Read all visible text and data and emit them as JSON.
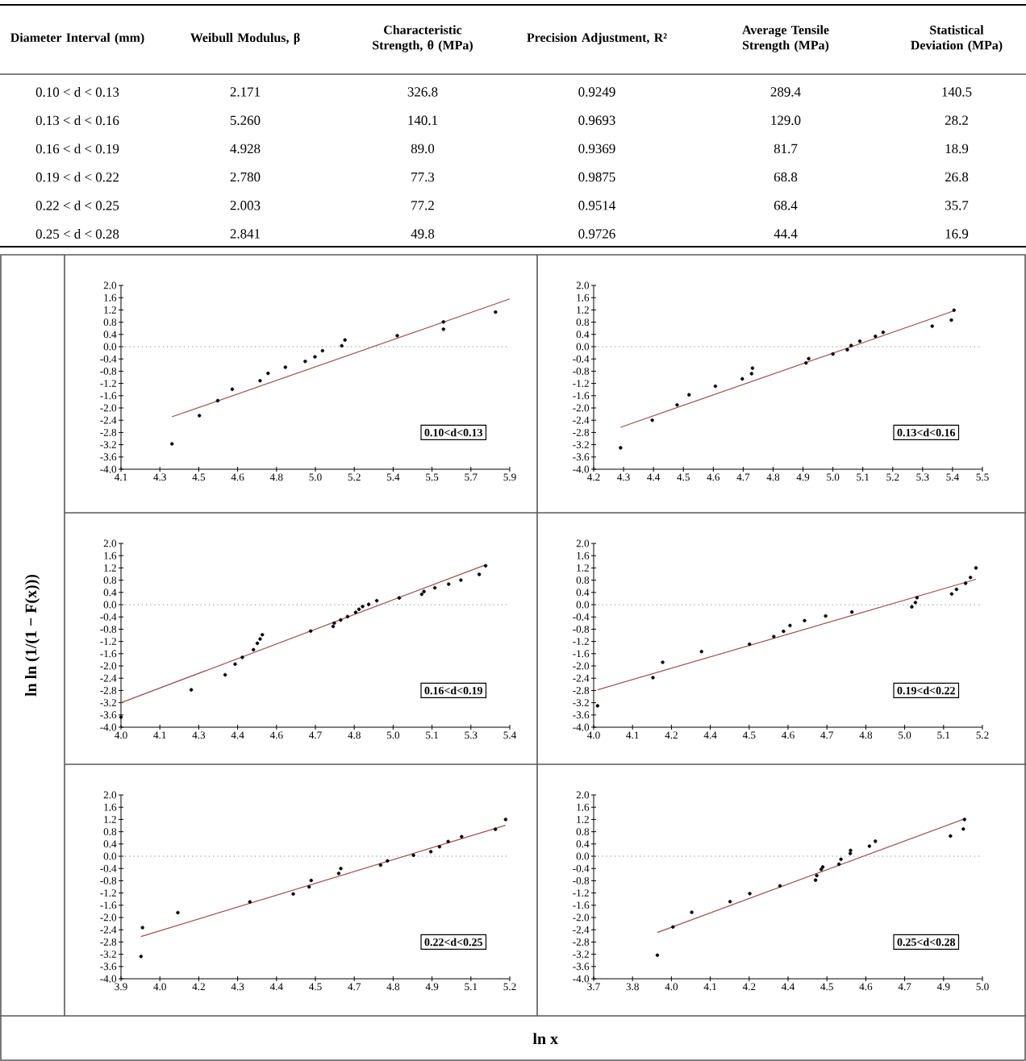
{
  "chart_data": [
    {
      "type": "other",
      "ylabel": "Diameter Interval (mm)",
      "categories": [
        "Weibull Modulus, β",
        "Characteristic Strength, θ (MPa)",
        "Precision Adjustment, R²",
        "Average Tensile Strength (MPa)",
        "Statistical Deviation (MPa)"
      ],
      "y_categories": [
        "0.10 < d < 0.13",
        "0.13 < d < 0.16",
        "0.16 < d < 0.19",
        "0.19 < d < 0.22",
        "0.22 < d < 0.25",
        "0.25 < d < 0.28"
      ],
      "cell_labels": [
        [
          "2.171",
          "326.8",
          "0.9249",
          "289.4",
          "140.5"
        ],
        [
          "5.260",
          "140.1",
          "0.9693",
          "129.0",
          "28.2"
        ],
        [
          "4.928",
          "89.0",
          "0.9369",
          "81.7",
          "18.9"
        ],
        [
          "2.780",
          "77.3",
          "0.9875",
          "68.8",
          "26.8"
        ],
        [
          "2.003",
          "77.2",
          "0.9514",
          "68.4",
          "35.7"
        ],
        [
          "2.841",
          "49.8",
          "0.9726",
          "44.4",
          "16.9"
        ]
      ]
    },
    {
      "type": "scatter",
      "marker": "circle",
      "grid": false,
      "xlim": [
        4.1,
        5.9
      ],
      "ylim": [
        -4.0,
        2.0
      ],
      "xticks": [
        4.1,
        {
          "value": 4.28,
          "label": "4.3"
        },
        {
          "value": 4.46,
          "label": "4.5"
        },
        {
          "value": 4.64,
          "label": "4.6"
        },
        {
          "value": 4.82,
          "label": "4.8"
        },
        {
          "value": 5.0,
          "label": "5.0"
        },
        {
          "value": 5.18,
          "label": "5.2"
        },
        {
          "value": 5.36,
          "label": "5.4"
        },
        {
          "value": 5.54,
          "label": "5.5"
        },
        {
          "value": 5.72,
          "label": "5.7"
        },
        5.9
      ],
      "yticks": [
        {
          "value": 2,
          "label": "2.0"
        },
        1.6,
        1.2,
        0.8,
        0.4,
        {
          "value": 0,
          "label": "0.0"
        },
        -0.4,
        -0.8,
        -1.2,
        -1.6,
        {
          "value": -2,
          "label": "-2.0"
        },
        -2.4,
        -2.8,
        -3.2,
        -3.6,
        {
          "value": -4,
          "label": "-4.0"
        }
      ],
      "series": [
        {
          "type": "scatter",
          "color": "#000000",
          "x": [
            4.336,
            4.463,
            4.548,
            4.615,
            4.744,
            4.781,
            4.861,
            4.953,
            4.998,
            5.033,
            5.122,
            5.137,
            5.379,
            5.593,
            5.593,
            5.834
          ],
          "values": [
            -3.17,
            -2.25,
            -1.76,
            -1.39,
            -1.11,
            -0.87,
            -0.67,
            -0.48,
            -0.33,
            -0.13,
            0.03,
            0.22,
            0.36,
            0.81,
            0.57,
            1.13
          ]
        },
        {
          "type": "line",
          "marker": "none",
          "color": "#9e4f4f",
          "x": [
            4.336,
            5.9
          ],
          "values": [
            -2.29,
            1.56
          ]
        }
      ],
      "ref_lines": [
        {
          "axis": "y",
          "value": 0,
          "line_style": "dotted",
          "color": "#808080"
        }
      ],
      "annotations": [
        "0.10<d<0.13"
      ]
    },
    {
      "type": "scatter",
      "marker": "circle",
      "grid": false,
      "xlim": [
        4.2,
        5.5
      ],
      "ylim": [
        -4.0,
        2.0
      ],
      "xticks": [
        4.2,
        4.3,
        4.4,
        4.5,
        4.6,
        4.7,
        4.8,
        4.9,
        {
          "value": 5.0,
          "label": "5.0"
        },
        5.1,
        5.2,
        5.3,
        5.4,
        5.5
      ],
      "yticks": [
        {
          "value": 2,
          "label": "2.0"
        },
        1.6,
        1.2,
        0.8,
        0.4,
        {
          "value": 0,
          "label": "0.0"
        },
        -0.4,
        -0.8,
        -1.2,
        -1.6,
        {
          "value": -2,
          "label": "-2.0"
        },
        -2.4,
        -2.8,
        -3.2,
        -3.6,
        {
          "value": -4,
          "label": "-4.0"
        }
      ],
      "series": [
        {
          "type": "scatter",
          "color": "#000000",
          "x": [
            4.29,
            4.396,
            4.479,
            4.519,
            4.607,
            4.697,
            4.728,
            4.731,
            4.91,
            4.919,
            5.0,
            5.048,
            5.061,
            5.09,
            5.142,
            5.168,
            5.332,
            5.396,
            5.405
          ],
          "values": [
            -3.3,
            -2.4,
            -1.9,
            -1.57,
            -1.29,
            -1.05,
            -0.88,
            -0.7,
            -0.53,
            -0.39,
            -0.24,
            -0.1,
            0.04,
            0.18,
            0.34,
            0.47,
            0.67,
            0.87,
            1.19
          ]
        },
        {
          "type": "line",
          "marker": "none",
          "color": "#9e4f4f",
          "x": [
            4.29,
            5.405
          ],
          "values": [
            -2.63,
            1.17
          ]
        }
      ],
      "ref_lines": [
        {
          "axis": "y",
          "value": 0,
          "line_style": "dotted",
          "color": "#808080"
        }
      ],
      "annotations": [
        "0.13<d<0.16"
      ]
    },
    {
      "type": "scatter",
      "marker": "circle",
      "grid": false,
      "ylabel": "ln ln (1/(1 − F(x)))",
      "xlim": [
        4.0,
        5.4
      ],
      "ylim": [
        -4.0,
        2.0
      ],
      "xticks": [
        {
          "value": 4.0,
          "label": "4.0"
        },
        {
          "value": 4.14,
          "label": "4.1"
        },
        {
          "value": 4.28,
          "label": "4.3"
        },
        {
          "value": 4.42,
          "label": "4.4"
        },
        {
          "value": 4.56,
          "label": "4.6"
        },
        4.7,
        {
          "value": 4.84,
          "label": "4.8"
        },
        {
          "value": 4.98,
          "label": "5.0"
        },
        {
          "value": 5.12,
          "label": "5.1"
        },
        {
          "value": 5.26,
          "label": "5.3"
        },
        5.4
      ],
      "yticks": [
        {
          "value": 2,
          "label": "2.0"
        },
        1.6,
        1.2,
        0.8,
        0.4,
        {
          "value": 0,
          "label": "0.0"
        },
        -0.4,
        -0.8,
        -1.2,
        -1.6,
        {
          "value": -2,
          "label": "-2.0"
        },
        -2.4,
        -2.8,
        -3.2,
        -3.6,
        {
          "value": -4,
          "label": "-4.0"
        }
      ],
      "series": [
        {
          "type": "scatter",
          "color": "#000000",
          "x": [
            4.0,
            4.253,
            4.375,
            4.411,
            4.437,
            4.477,
            4.491,
            4.501,
            4.509,
            4.683,
            4.764,
            4.768,
            4.791,
            4.816,
            4.845,
            4.857,
            4.87,
            4.892,
            4.921,
            5.002,
            5.083,
            5.091,
            5.13,
            5.18,
            5.224,
            5.29,
            5.313
          ],
          "values": [
            -3.67,
            -2.78,
            -2.29,
            -1.94,
            -1.72,
            -1.47,
            -1.26,
            -1.12,
            -0.98,
            -0.86,
            -0.71,
            -0.6,
            -0.5,
            -0.39,
            -0.25,
            -0.15,
            -0.06,
            0.01,
            0.13,
            0.22,
            0.34,
            0.43,
            0.55,
            0.67,
            0.8,
            0.99,
            1.27
          ]
        },
        {
          "type": "line",
          "marker": "none",
          "color": "#9e4f4f",
          "x": [
            4.0,
            5.313
          ],
          "values": [
            -3.2,
            1.3
          ]
        }
      ],
      "ref_lines": [
        {
          "axis": "y",
          "value": 0,
          "line_style": "dotted",
          "color": "#808080"
        }
      ],
      "annotations": [
        "0.16<d<0.19"
      ]
    },
    {
      "type": "scatter",
      "marker": "circle",
      "grid": false,
      "xlim": [
        4.0,
        5.2
      ],
      "ylim": [
        -4.0,
        2.0
      ],
      "xticks": [
        {
          "value": 4.0,
          "label": "4.0"
        },
        {
          "value": 4.12,
          "label": "4.1"
        },
        {
          "value": 4.24,
          "label": "4.2"
        },
        {
          "value": 4.36,
          "label": "4.4"
        },
        {
          "value": 4.48,
          "label": "4.5"
        },
        4.6,
        {
          "value": 4.72,
          "label": "4.7"
        },
        {
          "value": 4.84,
          "label": "4.8"
        },
        {
          "value": 4.96,
          "label": "5.0"
        },
        {
          "value": 5.08,
          "label": "5.1"
        },
        5.2
      ],
      "yticks": [
        {
          "value": 2,
          "label": "2.0"
        },
        1.6,
        1.2,
        0.8,
        0.4,
        {
          "value": 0,
          "label": "0.0"
        },
        -0.4,
        -0.8,
        -1.2,
        -1.6,
        {
          "value": -2,
          "label": "-2.0"
        },
        -2.4,
        -2.8,
        -3.2,
        -3.6,
        {
          "value": -4,
          "label": "-4.0"
        }
      ],
      "series": [
        {
          "type": "scatter",
          "color": "#000000",
          "x": [
            4.012,
            4.183,
            4.213,
            4.333,
            4.481,
            4.556,
            4.586,
            4.606,
            4.651,
            4.716,
            4.797,
            4.982,
            4.993,
            4.998,
            5.105,
            5.12,
            5.148,
            5.163,
            5.18
          ],
          "values": [
            -3.3,
            -2.38,
            -1.88,
            -1.53,
            -1.29,
            -1.04,
            -0.87,
            -0.68,
            -0.52,
            -0.37,
            -0.24,
            -0.07,
            0.07,
            0.23,
            0.35,
            0.5,
            0.7,
            0.89,
            1.2
          ]
        },
        {
          "type": "line",
          "marker": "none",
          "color": "#9e4f4f",
          "x": [
            4.012,
            5.18
          ],
          "values": [
            -2.78,
            0.83
          ]
        }
      ],
      "ref_lines": [
        {
          "axis": "y",
          "value": 0,
          "line_style": "dotted",
          "color": "#808080"
        }
      ],
      "annotations": [
        "0.19<d<0.22"
      ]
    },
    {
      "type": "scatter",
      "marker": "circle",
      "grid": false,
      "xlim": [
        3.9,
        5.2
      ],
      "ylim": [
        -4.0,
        2.0
      ],
      "xticks": [
        3.9,
        {
          "value": 4.03,
          "label": "4.0"
        },
        {
          "value": 4.16,
          "label": "4.2"
        },
        {
          "value": 4.29,
          "label": "4.3"
        },
        {
          "value": 4.42,
          "label": "4.4"
        },
        {
          "value": 4.55,
          "label": "4.5"
        },
        {
          "value": 4.68,
          "label": "4.7"
        },
        {
          "value": 4.81,
          "label": "4.8"
        },
        {
          "value": 4.94,
          "label": "4.9"
        },
        {
          "value": 5.07,
          "label": "5.1"
        },
        5.2
      ],
      "yticks": [
        {
          "value": 2,
          "label": "2.0"
        },
        1.6,
        1.2,
        0.8,
        0.4,
        {
          "value": 0,
          "label": "0.0"
        },
        -0.4,
        -0.8,
        -1.2,
        -1.6,
        {
          "value": -2,
          "label": "-2.0"
        },
        -2.4,
        -2.8,
        -3.2,
        -3.6,
        {
          "value": -4,
          "label": "-4.0"
        }
      ],
      "series": [
        {
          "type": "scatter",
          "color": "#000000",
          "x": [
            3.967,
            3.972,
            4.09,
            4.331,
            4.476,
            4.529,
            4.536,
            4.628,
            4.635,
            4.768,
            4.791,
            4.878,
            4.936,
            4.965,
            4.994,
            5.039,
            5.152,
            5.186
          ],
          "values": [
            -3.27,
            -2.33,
            -1.84,
            -1.49,
            -1.23,
            -1.0,
            -0.79,
            -0.56,
            -0.4,
            -0.29,
            -0.15,
            0.03,
            0.15,
            0.31,
            0.48,
            0.64,
            0.88,
            1.2
          ]
        },
        {
          "type": "line",
          "marker": "none",
          "color": "#9e4f4f",
          "x": [
            3.967,
            5.186
          ],
          "values": [
            -2.62,
            1.01
          ]
        }
      ],
      "ref_lines": [
        {
          "axis": "y",
          "value": 0,
          "line_style": "dotted",
          "color": "#808080"
        }
      ],
      "annotations": [
        "0.22<d<0.25"
      ]
    },
    {
      "type": "scatter",
      "marker": "circle",
      "grid": false,
      "xlabel": "ln x",
      "xlim": [
        3.7,
        5.0
      ],
      "ylim": [
        -4.0,
        2.0
      ],
      "xticks": [
        3.7,
        {
          "value": 3.83,
          "label": "3.8"
        },
        {
          "value": 3.96,
          "label": "4.0"
        },
        {
          "value": 4.09,
          "label": "4.1"
        },
        {
          "value": 4.22,
          "label": "4.2"
        },
        {
          "value": 4.35,
          "label": "4.4"
        },
        {
          "value": 4.48,
          "label": "4.5"
        },
        {
          "value": 4.61,
          "label": "4.6"
        },
        {
          "value": 4.74,
          "label": "4.7"
        },
        {
          "value": 4.87,
          "label": "4.9"
        },
        {
          "value": 5.0,
          "label": "5.0"
        }
      ],
      "yticks": [
        {
          "value": 2,
          "label": "2.0"
        },
        1.6,
        1.2,
        0.8,
        0.4,
        {
          "value": 0,
          "label": "0.0"
        },
        -0.4,
        -0.8,
        -1.2,
        -1.6,
        {
          "value": -2,
          "label": "-2.0"
        },
        -2.4,
        -2.8,
        -3.2,
        -3.6,
        {
          "value": -4,
          "label": "-4.0"
        }
      ],
      "series": [
        {
          "type": "scatter",
          "color": "#000000",
          "x": [
            3.913,
            3.965,
            4.028,
            4.156,
            4.222,
            4.323,
            4.442,
            4.446,
            4.461,
            4.466,
            4.52,
            4.527,
            4.558,
            4.559,
            4.622,
            4.642,
            4.893,
            4.936,
            4.94
          ],
          "values": [
            -3.23,
            -2.31,
            -1.83,
            -1.48,
            -1.22,
            -0.97,
            -0.78,
            -0.63,
            -0.43,
            -0.35,
            -0.26,
            -0.1,
            0.09,
            0.19,
            0.33,
            0.49,
            0.66,
            0.89,
            1.2
          ]
        },
        {
          "type": "line",
          "marker": "none",
          "color": "#9e4f4f",
          "x": [
            3.913,
            4.94
          ],
          "values": [
            -2.49,
            1.22
          ]
        }
      ],
      "ref_lines": [
        {
          "axis": "y",
          "value": 0,
          "line_style": "dotted",
          "color": "#808080"
        }
      ],
      "annotations": [
        "0.25<d<0.28"
      ]
    }
  ]
}
